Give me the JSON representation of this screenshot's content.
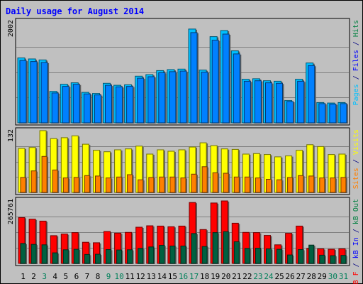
{
  "chart_data": {
    "type": "bar",
    "title": "Daily usage for August 2014",
    "categories": [
      "1",
      "2",
      "3",
      "4",
      "5",
      "6",
      "7",
      "8",
      "9",
      "10",
      "11",
      "12",
      "13",
      "14",
      "15",
      "16",
      "17",
      "18",
      "19",
      "20",
      "21",
      "22",
      "23",
      "24",
      "25",
      "26",
      "27",
      "28",
      "29",
      "30",
      "31"
    ],
    "weekend_days": [
      "3",
      "9",
      "10",
      "16",
      "17",
      "23",
      "24",
      "30",
      "31"
    ],
    "panels": [
      {
        "id": "hits",
        "ylabel_parts": [
          {
            "text": "Pages",
            "color": "#00c0ff"
          },
          {
            "text": " / ",
            "color": "#000080"
          },
          {
            "text": "Files",
            "color": "#0000ff"
          },
          {
            "text": " / ",
            "color": "#000080"
          },
          {
            "text": "Hits",
            "color": "#008040"
          }
        ],
        "max_label": "2002",
        "ylim": [
          0,
          2002
        ],
        "series": [
          {
            "name": "Hits",
            "color": "#00c0ff",
            "values": [
              1280,
              1260,
              1240,
              620,
              760,
              790,
              600,
              580,
              780,
              740,
              750,
              920,
              950,
              1030,
              1050,
              1060,
              1850,
              1040,
              1700,
              1820,
              1420,
              860,
              870,
              830,
              820,
              440,
              860,
              1180,
              400,
              390,
              400
            ]
          },
          {
            "name": "Files",
            "color": "#0080ff",
            "values": [
              1230,
              1210,
              1190,
              590,
              720,
              760,
              570,
              550,
              740,
              710,
              720,
              880,
              910,
              990,
              1010,
              1020,
              1780,
              1000,
              1630,
              1750,
              1360,
              820,
              830,
              790,
              780,
              420,
              820,
              1130,
              380,
              370,
              380
            ]
          }
        ]
      },
      {
        "id": "visits",
        "ylabel_parts": [
          {
            "text": "Sites",
            "color": "#ff8000"
          },
          {
            "text": " / ",
            "color": "#000080"
          },
          {
            "text": "Visits",
            "color": "#ffff00"
          }
        ],
        "max_label": "132",
        "ylim": [
          0,
          132
        ],
        "series": [
          {
            "name": "Visits",
            "color": "#ffff00",
            "values": [
              94,
              96,
              132,
              115,
              117,
              121,
              103,
              90,
              87,
              91,
              93,
              99,
              82,
              91,
              88,
              91,
              97,
              106,
              100,
              93,
              92,
              82,
              83,
              81,
              76,
              78,
              90,
              102,
              98,
              81,
              82
            ]
          },
          {
            "name": "Sites",
            "color": "#ff8000",
            "values": [
              32,
              46,
              77,
              48,
              31,
              32,
              36,
              35,
              31,
              33,
              38,
              27,
              32,
              33,
              33,
              31,
              39,
              55,
              42,
              41,
              33,
              33,
              31,
              28,
              27,
              32,
              36,
              35,
              31,
              31,
              32
            ]
          }
        ]
      },
      {
        "id": "kbytes",
        "ylabel_parts": [
          {
            "text": "kB F",
            "color": "#ff0000"
          },
          {
            "text": " / ",
            "color": "#000080"
          },
          {
            "text": "kB In",
            "color": "#0000ff"
          },
          {
            "text": " / ",
            "color": "#000080"
          },
          {
            "text": "kB Out",
            "color": "#008040"
          }
        ],
        "max_label": "265761",
        "ylim": [
          0,
          265761
        ],
        "series": [
          {
            "name": "kB F",
            "color": "#ff0000",
            "values": [
              195000,
              188000,
              180000,
              118000,
              125000,
              131000,
              90000,
              88000,
              136000,
              129000,
              132000,
              154000,
              160000,
              159000,
              156000,
              159000,
              259000,
              144000,
              257000,
              265761,
              171000,
              132000,
              131000,
              119000,
              79000,
              128000,
              159000,
              64000,
              62000,
              60000,
              62000
            ]
          },
          {
            "name": "kB Out",
            "color": "#006040",
            "values": [
              85000,
              81000,
              79000,
              45000,
              58000,
              60000,
              38000,
              39000,
              59000,
              57000,
              58000,
              64000,
              70000,
              77000,
              74000,
              74000,
              127000,
              72000,
              131000,
              135000,
              92000,
              64000,
              65000,
              62000,
              60000,
              36000,
              59000,
              78000,
              35000,
              33000,
              34000
            ]
          }
        ]
      }
    ]
  }
}
